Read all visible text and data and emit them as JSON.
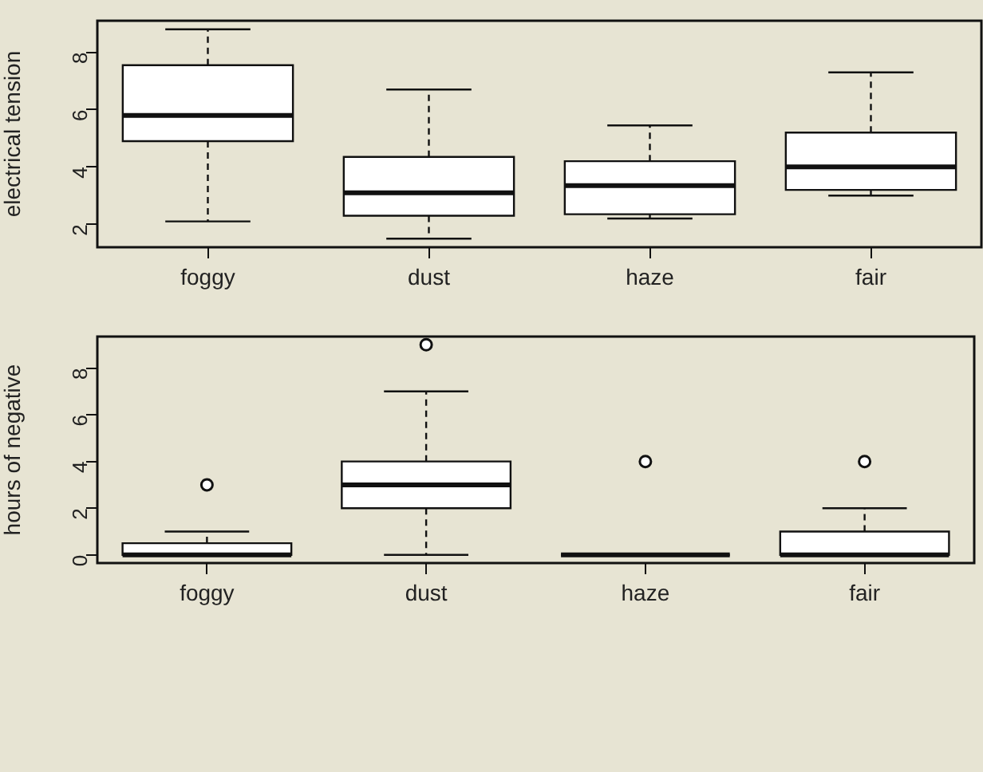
{
  "chart_data": [
    {
      "type": "box",
      "ylabel": "electrical tension",
      "categories": [
        "foggy",
        "dust",
        "haze",
        "fair"
      ],
      "ylim": [
        1.2,
        9.1
      ],
      "yticks": [
        2,
        4,
        6,
        8
      ],
      "boxes": [
        {
          "low": 2.1,
          "q1": 4.9,
          "median": 5.8,
          "q3": 7.55,
          "high": 8.8
        },
        {
          "low": 1.5,
          "q1": 2.3,
          "median": 3.1,
          "q3": 4.35,
          "high": 6.7
        },
        {
          "low": 2.2,
          "q1": 2.35,
          "median": 3.35,
          "q3": 4.2,
          "high": 5.45
        },
        {
          "low": 3.0,
          "q1": 3.2,
          "median": 4.0,
          "q3": 5.2,
          "high": 7.3
        }
      ]
    },
    {
      "type": "box",
      "ylabel": "hours of negative",
      "categories": [
        "foggy",
        "dust",
        "haze",
        "fair"
      ],
      "ylim": [
        -0.35,
        9.35
      ],
      "yticks": [
        0,
        2,
        4,
        6,
        8
      ],
      "boxes": [
        {
          "low": 0,
          "q1": 0,
          "median": 0,
          "q3": 0.5,
          "high": 1,
          "outliers": [
            3
          ]
        },
        {
          "low": 0,
          "q1": 2,
          "median": 3,
          "q3": 4,
          "high": 7,
          "outliers": [
            9
          ]
        },
        {
          "low": 0,
          "q1": 0,
          "median": 0,
          "q3": 0,
          "high": 0,
          "outliers": [
            4
          ]
        },
        {
          "low": 0,
          "q1": 0,
          "median": 0,
          "q3": 1,
          "high": 2,
          "outliers": [
            4
          ]
        }
      ]
    }
  ]
}
